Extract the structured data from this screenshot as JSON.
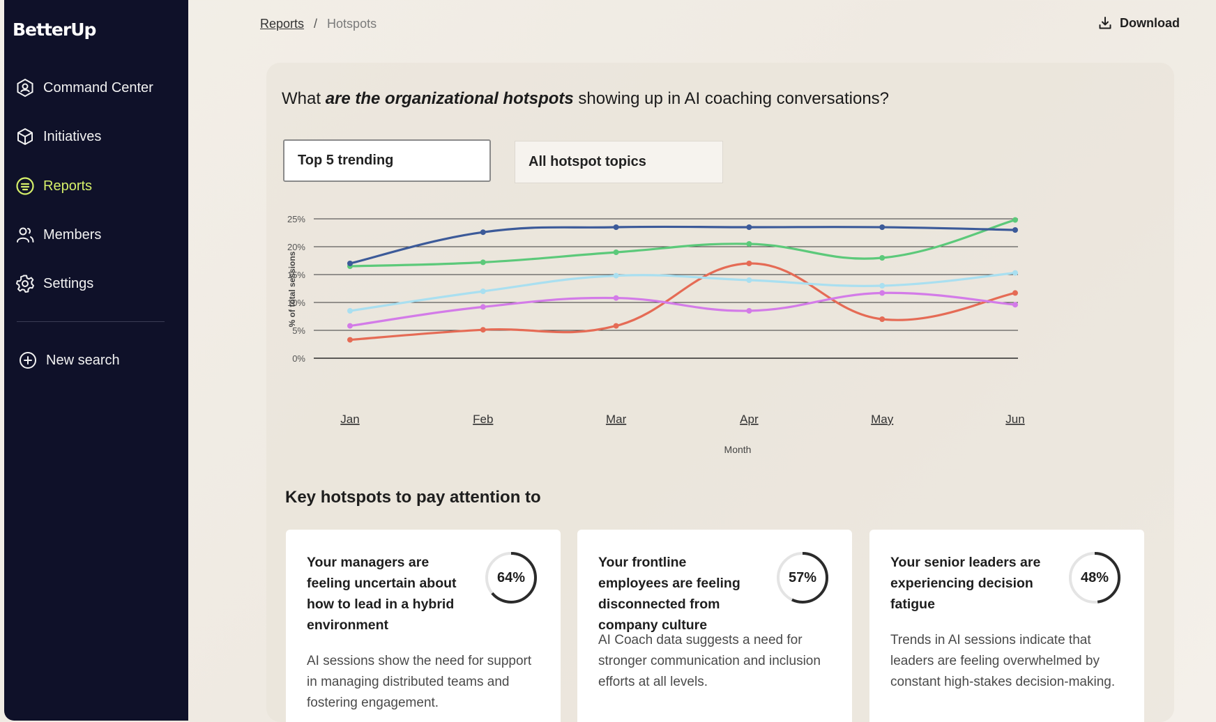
{
  "sidebar": {
    "logo": "BetterUp",
    "items": [
      {
        "label": "Command Center",
        "icon": "hexagon-user-icon"
      },
      {
        "label": "Initiatives",
        "icon": "cube-icon"
      },
      {
        "label": "Reports",
        "icon": "report-circle-icon",
        "active": true
      },
      {
        "label": "Members",
        "icon": "people-icon"
      },
      {
        "label": "Settings",
        "icon": "gear-icon"
      }
    ],
    "new_search": "New search",
    "active_color": "#d6f06a",
    "background": "#0f1129"
  },
  "header": {
    "breadcrumb_link": "Reports",
    "breadcrumb_sep": "/",
    "breadcrumb_current": "Hotspots",
    "download_label": "Download"
  },
  "main": {
    "question_pre": "What ",
    "question_em": "are the organizational hotspots",
    "question_post": " showing up in AI coaching conversations?",
    "filters": [
      {
        "label": "Top 5 trending",
        "selected": true
      },
      {
        "label": "All hotspot topics",
        "selected": false
      }
    ],
    "section_title": "Key hotspots to pay attention to",
    "cards": [
      {
        "title": "Your managers are feeling uncertain about how to lead in a hybrid environment",
        "percent_label": "64%",
        "percent": 64,
        "description": "AI sessions show the need for support in managing distributed teams and fostering engagement."
      },
      {
        "title": "Your frontline employees are feeling disconnected from company culture",
        "percent_label": "57%",
        "percent": 57,
        "description": "AI Coach data suggests a need for stronger communication and inclusion efforts at all levels."
      },
      {
        "title": "Your senior leaders are experiencing decision fatigue",
        "percent_label": "48%",
        "percent": 48,
        "description": "Trends in AI sessions indicate that leaders are feeling overwhelmed by constant high-stakes decision-making."
      }
    ]
  },
  "chart_data": {
    "type": "line",
    "x": [
      "Jan",
      "Feb",
      "Mar",
      "Apr",
      "May",
      "Jun"
    ],
    "xlabel": "Month",
    "ylabel": "% of total sessions",
    "ylim": [
      0,
      25
    ],
    "yticks": [
      "0%",
      "5%",
      "10%",
      "15%",
      "20%",
      "25%"
    ],
    "grid": true,
    "series": [
      {
        "color": "#3c5a99",
        "values": [
          17,
          22.6,
          23.5,
          23.5,
          23.5,
          23
        ]
      },
      {
        "color": "#5cc97a",
        "values": [
          16.5,
          17.2,
          19,
          20.5,
          18,
          24.8
        ]
      },
      {
        "color": "#a9dff0",
        "values": [
          8.5,
          12,
          14.8,
          14,
          13,
          15.3
        ]
      },
      {
        "color": "#d37be8",
        "values": [
          5.8,
          9.2,
          10.8,
          8.5,
          11.7,
          9.6
        ]
      },
      {
        "color": "#e56b55",
        "values": [
          3.3,
          5.1,
          5.8,
          17,
          7,
          11.7
        ]
      }
    ]
  }
}
